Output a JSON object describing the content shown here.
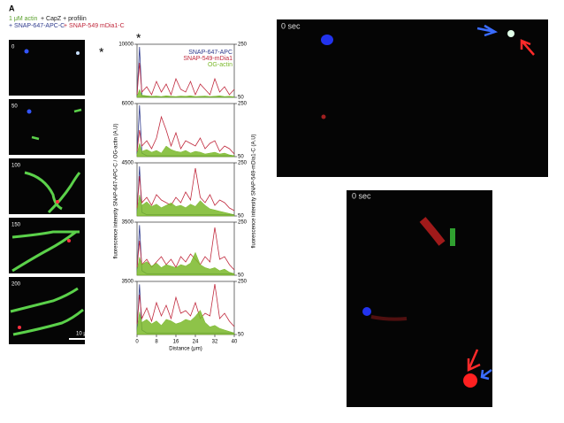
{
  "header": {
    "panel_letter": "A",
    "line1_actin": "1 μM actin",
    "line1_rest": "+ CapZ + profilin",
    "line2_apc": "+ SNAP-647-APC-C",
    "line2_mdia": "+ SNAP-549 mDia1-C"
  },
  "images": {
    "time_labels": [
      "0",
      "50",
      "100",
      "150",
      "200"
    ],
    "asterisk": "*",
    "scale_bar": "10 μm"
  },
  "figure": {
    "ylabel_left": "fluorescence intensity SNAP-647-APC-C / OG-actin (A.U)",
    "ylabel_right": "fluorescence intensity SNAP-549-mDia1-C (A.U)",
    "asterisk": "*"
  },
  "chart_data": [
    {
      "type": "line",
      "x": [
        0,
        1,
        2,
        4,
        6,
        8,
        10,
        12,
        14,
        16,
        18,
        20,
        22,
        24,
        26,
        28,
        30,
        32,
        34,
        36,
        38,
        40
      ],
      "xlim": [
        0,
        40
      ],
      "ylim": [
        0,
        10000
      ],
      "yticks": [
        10000
      ],
      "y2lim": [
        50,
        250
      ],
      "y2ticks": [
        50,
        250
      ],
      "legend": "upper right",
      "series": [
        {
          "name": "SNAP-647-APC",
          "color": "#2e3a8c",
          "values": [
            200,
            9500,
            300,
            100,
            50,
            50,
            50,
            50,
            50,
            50,
            50,
            50,
            50,
            50,
            50,
            50,
            50,
            50,
            50,
            50,
            50,
            50
          ]
        },
        {
          "name": "SNAP-549-mDia1",
          "color": "#c0283c",
          "axis": "y2",
          "values": [
            60,
            180,
            70,
            90,
            60,
            110,
            70,
            100,
            60,
            120,
            80,
            70,
            110,
            60,
            100,
            80,
            60,
            120,
            70,
            90,
            60,
            80
          ]
        },
        {
          "name": "OG-actin",
          "color": "#7ab829",
          "fill": true,
          "values": [
            200,
            1500,
            400,
            300,
            200,
            250,
            150,
            300,
            200,
            150,
            250,
            200,
            300,
            150,
            200,
            250,
            150,
            200,
            300,
            150,
            200,
            100
          ]
        }
      ]
    },
    {
      "type": "line",
      "x": [
        0,
        1,
        2,
        4,
        6,
        8,
        10,
        12,
        14,
        16,
        18,
        20,
        22,
        24,
        26,
        28,
        30,
        32,
        34,
        36,
        38,
        40
      ],
      "xlim": [
        0,
        40
      ],
      "ylim": [
        0,
        6000
      ],
      "yticks": [
        6000
      ],
      "y2lim": [
        50,
        250
      ],
      "y2ticks": [
        50,
        250
      ],
      "series": [
        {
          "color": "#2e3a8c",
          "values": [
            300,
            5800,
            400,
            100,
            100,
            100,
            100,
            100,
            100,
            100,
            100,
            100,
            100,
            100,
            100,
            100,
            100,
            100,
            100,
            100,
            100,
            100
          ]
        },
        {
          "color": "#c0283c",
          "axis": "y2",
          "values": [
            70,
            150,
            90,
            110,
            80,
            120,
            200,
            150,
            90,
            140,
            80,
            110,
            100,
            90,
            120,
            80,
            100,
            110,
            70,
            90,
            80,
            60
          ]
        },
        {
          "color": "#7ab829",
          "fill": true,
          "values": [
            300,
            1500,
            600,
            800,
            500,
            700,
            400,
            1200,
            800,
            600,
            500,
            700,
            400,
            600,
            500,
            300,
            400,
            500,
            300,
            400,
            200,
            100
          ]
        }
      ]
    },
    {
      "type": "line",
      "x": [
        0,
        1,
        2,
        4,
        6,
        8,
        10,
        12,
        14,
        16,
        18,
        20,
        22,
        24,
        26,
        28,
        30,
        32,
        34,
        36,
        38,
        40
      ],
      "xlim": [
        0,
        40
      ],
      "ylim": [
        0,
        4500
      ],
      "yticks": [
        4500
      ],
      "y2lim": [
        50,
        250
      ],
      "y2ticks": [
        50,
        250
      ],
      "series": [
        {
          "color": "#2e3a8c",
          "values": [
            200,
            4200,
            300,
            100,
            100,
            100,
            100,
            100,
            100,
            100,
            100,
            100,
            100,
            100,
            100,
            100,
            100,
            100,
            100,
            100,
            100,
            100
          ]
        },
        {
          "color": "#c0283c",
          "axis": "y2",
          "values": [
            80,
            200,
            100,
            120,
            90,
            130,
            110,
            100,
            90,
            120,
            100,
            140,
            110,
            230,
            120,
            100,
            130,
            90,
            110,
            100,
            80,
            70
          ]
        },
        {
          "color": "#7ab829",
          "fill": true,
          "values": [
            400,
            1800,
            900,
            1200,
            800,
            1000,
            700,
            900,
            1100,
            800,
            900,
            700,
            1000,
            800,
            1300,
            900,
            600,
            500,
            400,
            300,
            200,
            100
          ]
        }
      ]
    },
    {
      "type": "line",
      "x": [
        0,
        1,
        2,
        4,
        6,
        8,
        10,
        12,
        14,
        16,
        18,
        20,
        22,
        24,
        26,
        28,
        30,
        32,
        34,
        36,
        38,
        40
      ],
      "xlim": [
        0,
        40
      ],
      "ylim": [
        0,
        3500
      ],
      "yticks": [
        3500
      ],
      "y2lim": [
        50,
        250
      ],
      "y2ticks": [
        50,
        250
      ],
      "series": [
        {
          "color": "#2e3a8c",
          "values": [
            200,
            3300,
            300,
            100,
            100,
            100,
            100,
            100,
            100,
            100,
            100,
            100,
            100,
            100,
            100,
            100,
            100,
            100,
            100,
            100,
            100,
            100
          ]
        },
        {
          "color": "#c0283c",
          "axis": "y2",
          "values": [
            80,
            180,
            90,
            110,
            80,
            100,
            120,
            90,
            110,
            80,
            120,
            100,
            130,
            110,
            90,
            120,
            100,
            230,
            110,
            120,
            90,
            70
          ]
        },
        {
          "color": "#7ab829",
          "fill": true,
          "values": [
            300,
            1200,
            700,
            900,
            600,
            800,
            500,
            700,
            600,
            500,
            700,
            600,
            800,
            1500,
            700,
            500,
            400,
            500,
            300,
            400,
            200,
            100
          ]
        }
      ]
    },
    {
      "type": "line",
      "x": [
        0,
        1,
        2,
        4,
        6,
        8,
        10,
        12,
        14,
        16,
        18,
        20,
        22,
        24,
        26,
        28,
        30,
        32,
        34,
        36,
        38,
        40
      ],
      "xlim": [
        0,
        40
      ],
      "ylim": [
        0,
        3500
      ],
      "yticks": [
        3500
      ],
      "y2lim": [
        50,
        250
      ],
      "y2ticks": [
        50,
        250
      ],
      "xticks": [
        0,
        8,
        16,
        24,
        32,
        40
      ],
      "xlabel": "Distance (μm)",
      "series": [
        {
          "color": "#2e3a8c",
          "values": [
            200,
            3300,
            300,
            100,
            100,
            100,
            100,
            100,
            100,
            100,
            100,
            100,
            100,
            100,
            100,
            100,
            100,
            100,
            100,
            100,
            100,
            100
          ]
        },
        {
          "color": "#c0283c",
          "axis": "y2",
          "values": [
            90,
            200,
            110,
            150,
            100,
            170,
            120,
            160,
            110,
            190,
            130,
            140,
            120,
            170,
            110,
            130,
            120,
            240,
            110,
            130,
            100,
            80
          ]
        },
        {
          "color": "#7ab829",
          "fill": true,
          "values": [
            300,
            1500,
            800,
            1000,
            700,
            900,
            600,
            1000,
            900,
            700,
            800,
            1000,
            900,
            1200,
            1600,
            800,
            500,
            600,
            400,
            300,
            200,
            100
          ]
        }
      ]
    }
  ],
  "videos": [
    {
      "time": "0 sec"
    },
    {
      "time": "0 sec"
    }
  ]
}
